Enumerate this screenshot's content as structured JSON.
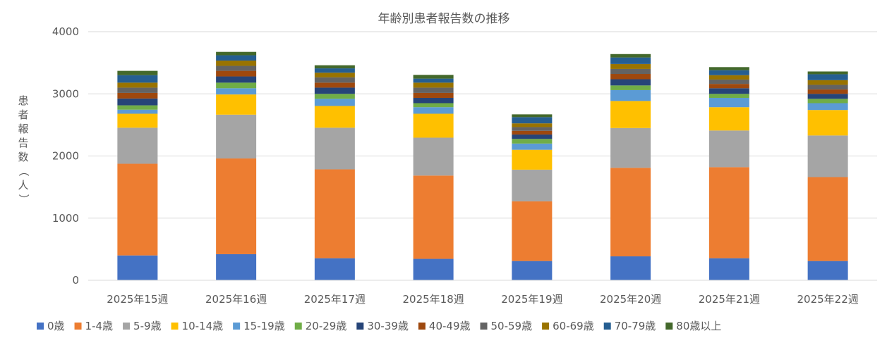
{
  "chart_data": {
    "type": "bar",
    "stacked": true,
    "title": "年齢別患者報告数の推移",
    "ylabel": "患者報告数（人）",
    "xlabel": "",
    "ylim": [
      0,
      4000
    ],
    "yticks": [
      0,
      1000,
      2000,
      3000,
      4000
    ],
    "grid": true,
    "legend_position": "bottom",
    "categories": [
      "2025年15週",
      "2025年16週",
      "2025年17週",
      "2025年18週",
      "2025年19週",
      "2025年20週",
      "2025年21週",
      "2025年22週"
    ],
    "series": [
      {
        "name": "0歳",
        "color": "#4472C4",
        "values": [
          400,
          420,
          355,
          345,
          310,
          385,
          355,
          310
        ]
      },
      {
        "name": "1-4歳",
        "color": "#ED7D31",
        "values": [
          1475,
          1540,
          1430,
          1340,
          960,
          1425,
          1465,
          1350
        ]
      },
      {
        "name": "5-9歳",
        "color": "#A5A5A5",
        "values": [
          580,
          705,
          670,
          610,
          510,
          640,
          590,
          670
        ]
      },
      {
        "name": "10-14歳",
        "color": "#FFC000",
        "values": [
          225,
          325,
          350,
          385,
          320,
          435,
          375,
          410
        ]
      },
      {
        "name": "15-19歳",
        "color": "#5B9BD5",
        "values": [
          65,
          100,
          115,
          105,
          100,
          175,
          150,
          110
        ]
      },
      {
        "name": "20-29歳",
        "color": "#70AD47",
        "values": [
          70,
          90,
          80,
          65,
          75,
          75,
          65,
          70
        ]
      },
      {
        "name": "30-39歳",
        "color": "#264478",
        "values": [
          110,
          100,
          100,
          85,
          70,
          100,
          90,
          80
        ]
      },
      {
        "name": "40-49歳",
        "color": "#9E480E",
        "values": [
          90,
          90,
          80,
          80,
          60,
          85,
          70,
          70
        ]
      },
      {
        "name": "50-59歳",
        "color": "#636363",
        "values": [
          85,
          80,
          85,
          85,
          60,
          80,
          70,
          75
        ]
      },
      {
        "name": "60-69歳",
        "color": "#997300",
        "values": [
          80,
          85,
          75,
          80,
          60,
          80,
          70,
          75
        ]
      },
      {
        "name": "70-79歳",
        "color": "#255E91",
        "values": [
          120,
          85,
          70,
          65,
          100,
          105,
          80,
          95
        ]
      },
      {
        "name": "80歳以上",
        "color": "#43682B",
        "values": [
          70,
          55,
          50,
          60,
          45,
          55,
          50,
          45
        ]
      }
    ]
  }
}
